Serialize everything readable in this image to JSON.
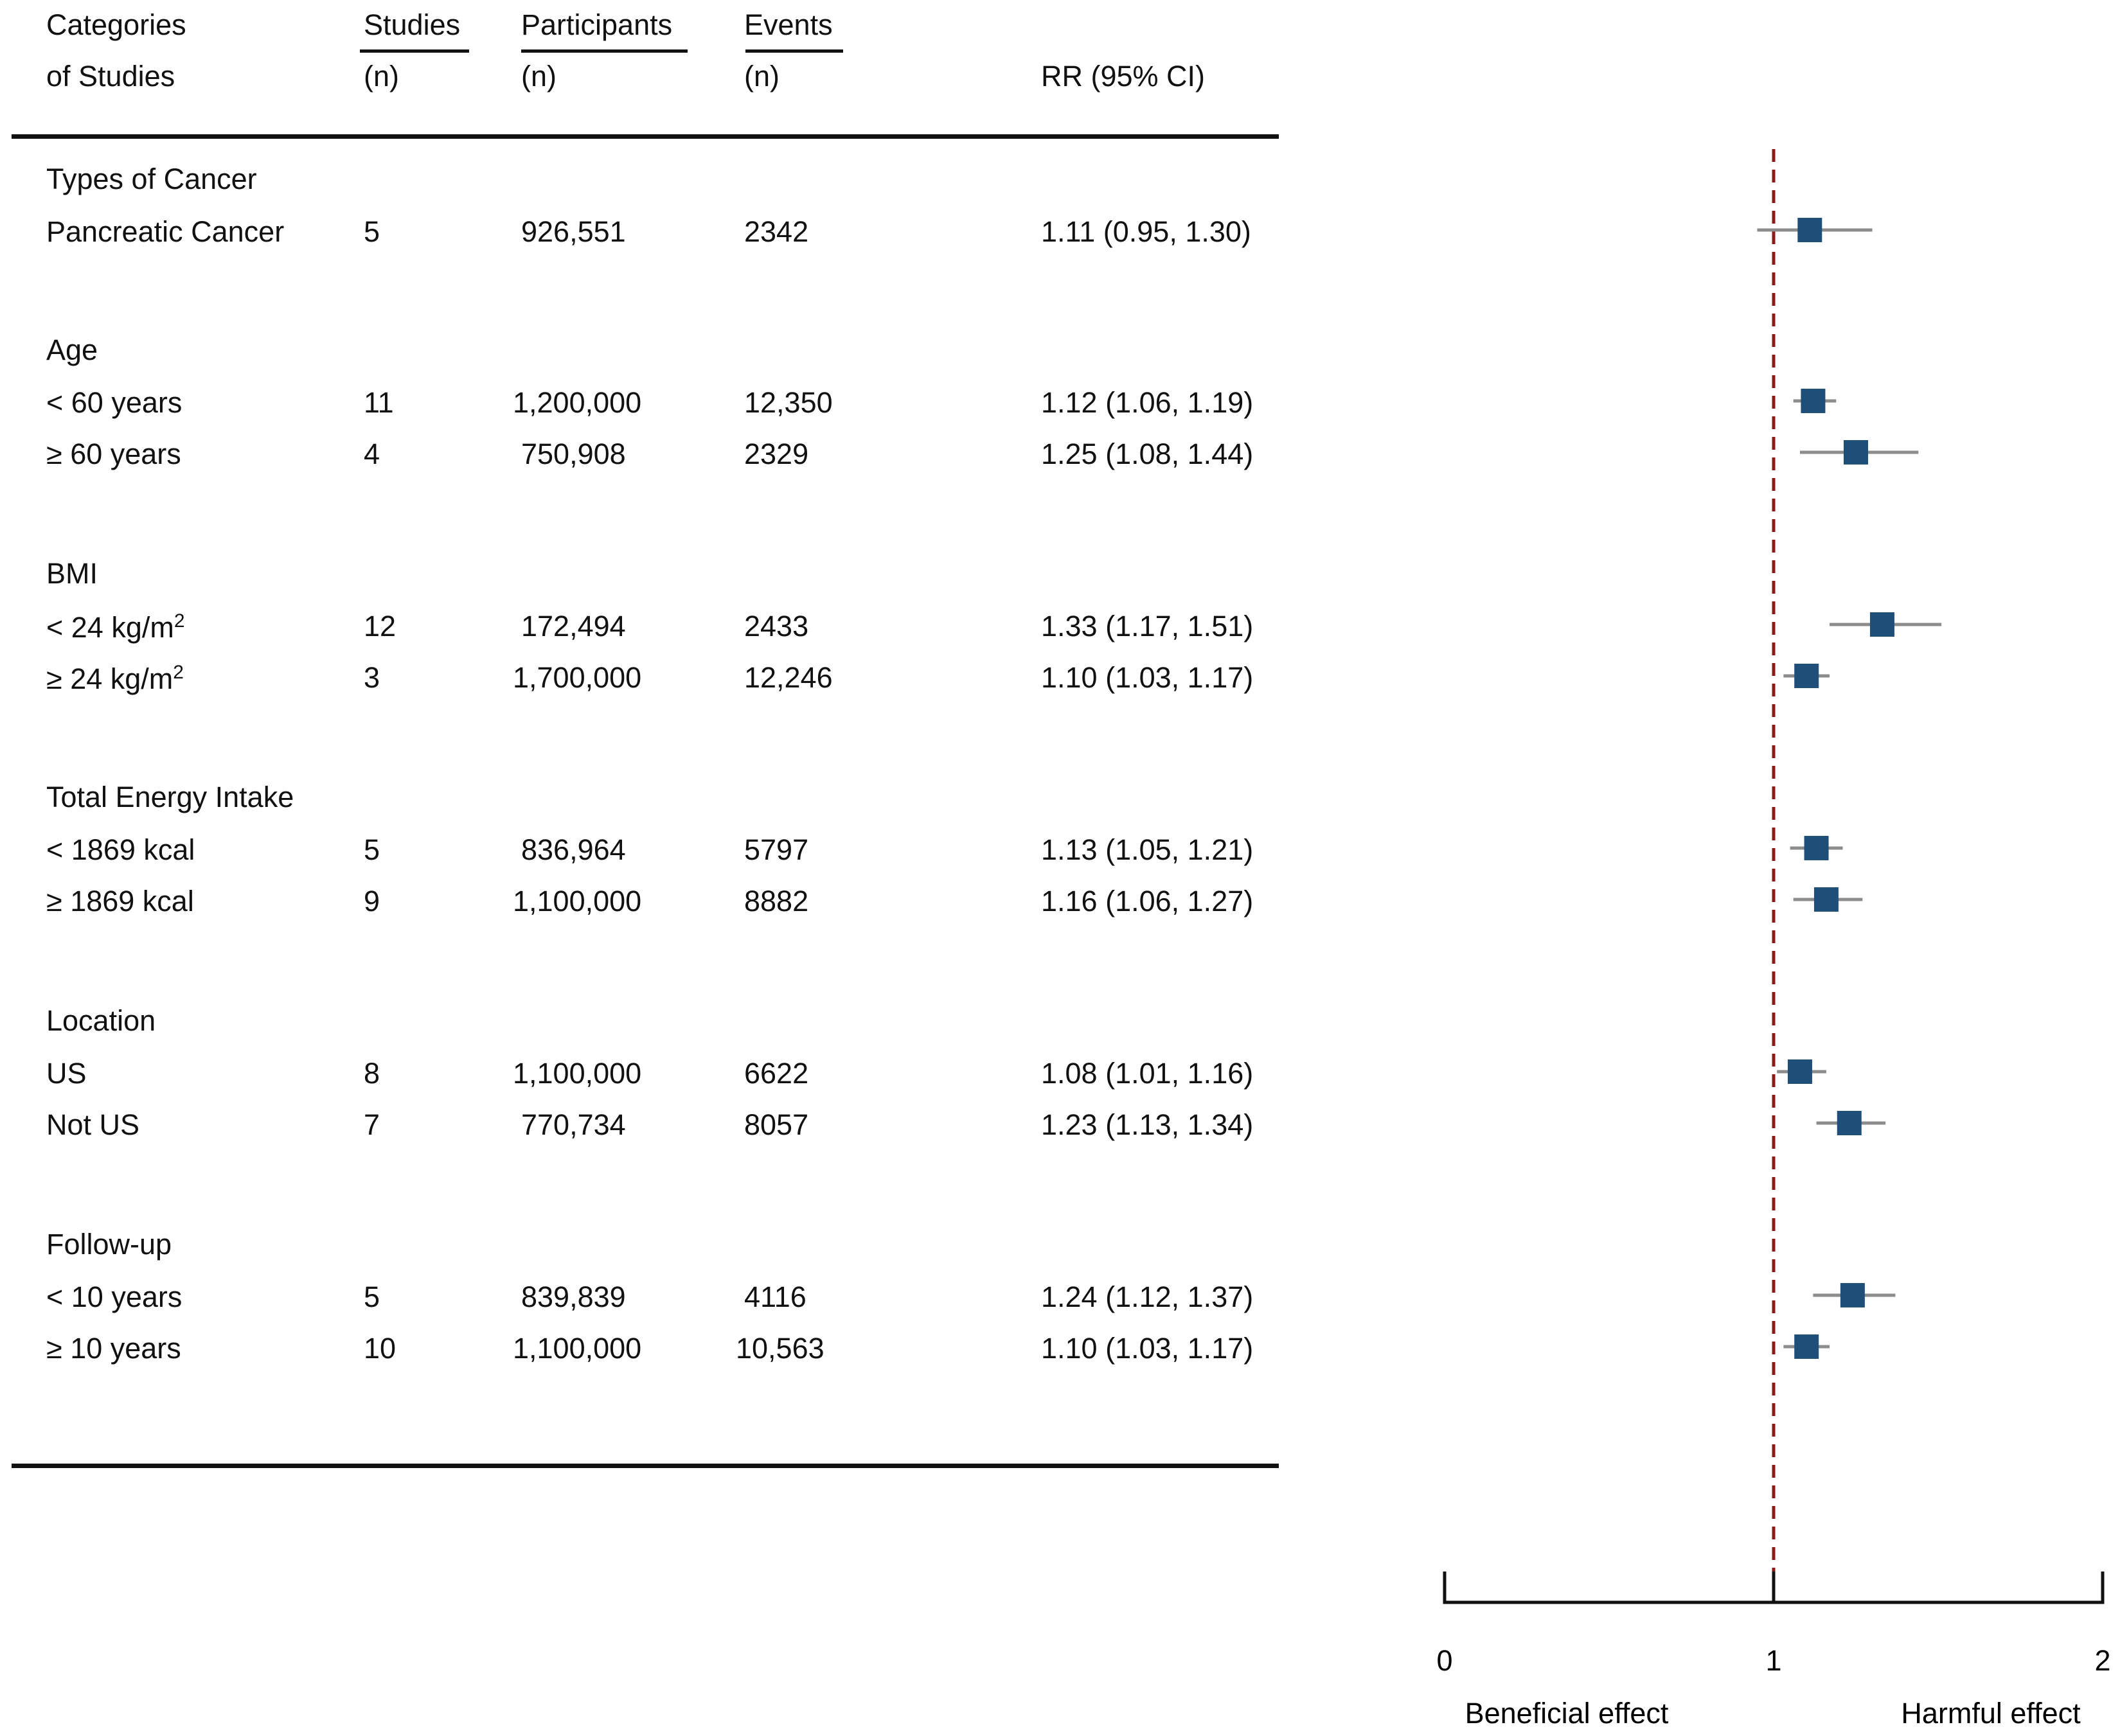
{
  "header": {
    "col1_line1": "Categories",
    "col1_line2": "of Studies",
    "col2_line1": "Studies",
    "col2_line2": "(n)",
    "col3_line1": "Participants",
    "col3_line2": "(n)",
    "col4_line1": "Events",
    "col4_line2": "(n)",
    "col5": "RR (95% CI)"
  },
  "groups": [
    {
      "title": "Types of Cancer"
    },
    {
      "title": "Age"
    },
    {
      "title": "BMI"
    },
    {
      "title": "Total Energy Intake"
    },
    {
      "title": "Location"
    },
    {
      "title": "Follow-up"
    }
  ],
  "rows": [
    {
      "label": "Pancreatic Cancer",
      "studies": "5",
      "participants": "926,551",
      "events": "2342",
      "rr_text": "1.11 (0.95, 1.30)"
    },
    {
      "label": "< 60 years",
      "studies": "11",
      "participants": "1,200,000",
      "events": "12,350",
      "rr_text": "1.12 (1.06, 1.19)"
    },
    {
      "label": "≥ 60 years",
      "studies": "4",
      "participants": "750,908",
      "events": "2329",
      "rr_text": "1.25 (1.08, 1.44)"
    },
    {
      "label": "< 24 kg/m",
      "label_sup": "2",
      "studies": "12",
      "participants": "172,494",
      "events": "2433",
      "rr_text": "1.33 (1.17, 1.51)"
    },
    {
      "label": "≥ 24 kg/m",
      "label_sup": "2",
      "studies": "3",
      "participants": "1,700,000",
      "events": "12,246",
      "rr_text": "1.10 (1.03, 1.17)"
    },
    {
      "label": "< 1869 kcal",
      "studies": "5",
      "participants": "836,964",
      "events": "5797",
      "rr_text": "1.13 (1.05, 1.21)"
    },
    {
      "label": "≥ 1869 kcal",
      "studies": "9",
      "participants": "1,100,000",
      "events": "8882",
      "rr_text": "1.16 (1.06, 1.27)"
    },
    {
      "label": "US",
      "studies": "8",
      "participants": "1,100,000",
      "events": "6622",
      "rr_text": "1.08 (1.01, 1.16)"
    },
    {
      "label": "Not US",
      "studies": "7",
      "participants": "770,734",
      "events": "8057",
      "rr_text": "1.23 (1.13, 1.34)"
    },
    {
      "label": "< 10 years",
      "studies": "5",
      "participants": "839,839",
      "events": "4116",
      "rr_text": "1.24 (1.12, 1.37)"
    },
    {
      "label": "≥ 10 years",
      "studies": "10",
      "participants": "1,100,000",
      "events": "10,563",
      "rr_text": "1.10 (1.03, 1.17)"
    }
  ],
  "colors": {
    "marker": "#1f4e79",
    "ci_line": "#8c8c8c",
    "ref_line": "#8b1a1a",
    "text": "#111111"
  },
  "chart_data": {
    "type": "forest",
    "xlim": [
      0,
      2
    ],
    "ticks": [
      0,
      1,
      2
    ],
    "tick_labels": [
      "0",
      "1",
      "2"
    ],
    "reference_value": 1,
    "left_label": "Beneficial effect",
    "right_label": "Harmful effect",
    "series": [
      {
        "name": "Pancreatic Cancer",
        "rr": 1.11,
        "lo": 0.95,
        "hi": 1.3
      },
      {
        "name": "< 60 years",
        "rr": 1.12,
        "lo": 1.06,
        "hi": 1.19
      },
      {
        "name": "≥ 60 years",
        "rr": 1.25,
        "lo": 1.08,
        "hi": 1.44
      },
      {
        "name": "< 24 kg/m2",
        "rr": 1.33,
        "lo": 1.17,
        "hi": 1.51
      },
      {
        "name": "≥ 24 kg/m2",
        "rr": 1.1,
        "lo": 1.03,
        "hi": 1.17
      },
      {
        "name": "< 1869 kcal",
        "rr": 1.13,
        "lo": 1.05,
        "hi": 1.21
      },
      {
        "name": "≥ 1869 kcal",
        "rr": 1.16,
        "lo": 1.06,
        "hi": 1.27
      },
      {
        "name": "US",
        "rr": 1.08,
        "lo": 1.01,
        "hi": 1.16
      },
      {
        "name": "Not US",
        "rr": 1.23,
        "lo": 1.13,
        "hi": 1.34
      },
      {
        "name": "< 10 years",
        "rr": 1.24,
        "lo": 1.12,
        "hi": 1.37
      },
      {
        "name": "≥ 10 years",
        "rr": 1.1,
        "lo": 1.03,
        "hi": 1.17
      }
    ]
  }
}
